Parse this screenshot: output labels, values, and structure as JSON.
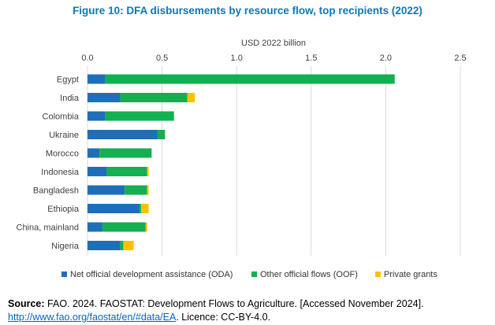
{
  "chart_data": {
    "type": "bar",
    "orientation": "horizontal",
    "stacked": true,
    "title": "Figure 10: DFA disbursements by resource flow, top recipients (2022)",
    "xlabel": "USD 2022 billion",
    "xlim": [
      0,
      2.5
    ],
    "xticks": [
      0.0,
      0.5,
      1.0,
      1.5,
      2.0,
      2.5
    ],
    "xtick_labels": [
      "0.0",
      "0.5",
      "1.0",
      "1.5",
      "2.0",
      "2.5"
    ],
    "axis_position": "top",
    "grid": true,
    "legend_position": "bottom",
    "categories": [
      "Egypt",
      "India",
      "Colombia",
      "Ukraine",
      "Morocco",
      "Indonesia",
      "Bangladesh",
      "Ethiopia",
      "China, mainland",
      "Nigeria"
    ],
    "series": [
      {
        "name": "Net official development assistance (ODA)",
        "color": "#1f6fb8",
        "values": [
          0.12,
          0.22,
          0.12,
          0.47,
          0.08,
          0.13,
          0.25,
          0.35,
          0.1,
          0.22
        ]
      },
      {
        "name": "Other official flows (OOF)",
        "color": "#12b050",
        "values": [
          1.94,
          0.45,
          0.46,
          0.05,
          0.35,
          0.27,
          0.15,
          0.01,
          0.29,
          0.02
        ]
      },
      {
        "name": "Private grants",
        "color": "#ffc000",
        "values": [
          0.0,
          0.05,
          0.0,
          0.0,
          0.0,
          0.01,
          0.01,
          0.05,
          0.01,
          0.07
        ]
      }
    ]
  },
  "source": {
    "label": "Source:",
    "text": "FAO. 2024. FAOSTAT: Development Flows to Agriculture. [Accessed November 2024].",
    "url": "http://www.fao.org/faostat/en/#data/EA",
    "licence": ". Licence: CC-BY-4.0."
  }
}
